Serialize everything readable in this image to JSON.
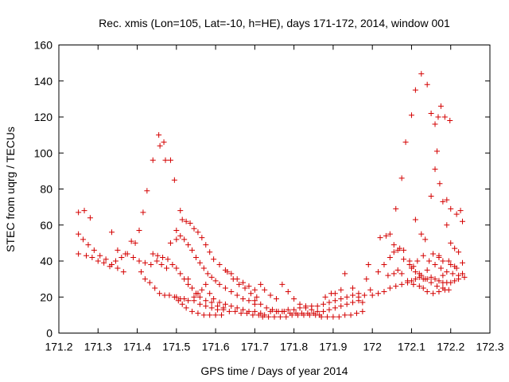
{
  "chart_data": {
    "type": "scatter",
    "title": "Rec. xmis (Lon=105, Lat=-10, h=HE), days 171-172, 2014, window 001",
    "xlabel": "GPS time / Days of year 2014",
    "ylabel": "STEC from uqrg / TECUs",
    "xlim": [
      171.2,
      172.3
    ],
    "ylim": [
      0,
      160
    ],
    "x_ticks": [
      "171.2",
      "171.3",
      "171.4",
      "171.5",
      "171.6",
      "171.7",
      "171.8",
      "171.9",
      "172",
      "172.1",
      "172.2",
      "172.3"
    ],
    "y_ticks": [
      "0",
      "20",
      "40",
      "60",
      "80",
      "100",
      "120",
      "140",
      "160"
    ],
    "grid": false,
    "marker": "+",
    "color": "#d40000",
    "points": [
      [
        171.25,
        67
      ],
      [
        171.265,
        68
      ],
      [
        171.28,
        64
      ],
      [
        171.25,
        55
      ],
      [
        171.262,
        52
      ],
      [
        171.275,
        49
      ],
      [
        171.29,
        46
      ],
      [
        171.305,
        43
      ],
      [
        171.32,
        41
      ],
      [
        171.335,
        38
      ],
      [
        171.35,
        36
      ],
      [
        171.365,
        34
      ],
      [
        171.25,
        44
      ],
      [
        171.27,
        43
      ],
      [
        171.285,
        42
      ],
      [
        171.3,
        40
      ],
      [
        171.315,
        39
      ],
      [
        171.33,
        37
      ],
      [
        171.345,
        40
      ],
      [
        171.36,
        42
      ],
      [
        171.375,
        44
      ],
      [
        171.39,
        42
      ],
      [
        171.405,
        40
      ],
      [
        171.42,
        39
      ],
      [
        171.435,
        38
      ],
      [
        171.335,
        56
      ],
      [
        171.35,
        46
      ],
      [
        171.37,
        44
      ],
      [
        171.385,
        51
      ],
      [
        171.395,
        50
      ],
      [
        171.405,
        57
      ],
      [
        171.415,
        67
      ],
      [
        171.425,
        79
      ],
      [
        171.44,
        96
      ],
      [
        171.455,
        110
      ],
      [
        171.458,
        104
      ],
      [
        171.468,
        106
      ],
      [
        171.472,
        96
      ],
      [
        171.485,
        96
      ],
      [
        171.495,
        85
      ],
      [
        171.41,
        34
      ],
      [
        171.42,
        30
      ],
      [
        171.432,
        28
      ],
      [
        171.445,
        25
      ],
      [
        171.457,
        22
      ],
      [
        171.47,
        21
      ],
      [
        171.482,
        21
      ],
      [
        171.495,
        20
      ],
      [
        171.505,
        18
      ],
      [
        171.515,
        16
      ],
      [
        171.525,
        14
      ],
      [
        171.54,
        12
      ],
      [
        171.555,
        11
      ],
      [
        171.57,
        10
      ],
      [
        171.585,
        10
      ],
      [
        171.6,
        10
      ],
      [
        171.615,
        10
      ],
      [
        171.44,
        44
      ],
      [
        171.452,
        43
      ],
      [
        171.465,
        42
      ],
      [
        171.478,
        41
      ],
      [
        171.49,
        38
      ],
      [
        171.5,
        36
      ],
      [
        171.51,
        33
      ],
      [
        171.52,
        30
      ],
      [
        171.53,
        27
      ],
      [
        171.54,
        25
      ],
      [
        171.55,
        22
      ],
      [
        171.56,
        20
      ],
      [
        171.575,
        18
      ],
      [
        171.59,
        17
      ],
      [
        171.605,
        15
      ],
      [
        171.62,
        14
      ],
      [
        171.45,
        40
      ],
      [
        171.462,
        38
      ],
      [
        171.475,
        36
      ],
      [
        171.485,
        50
      ],
      [
        171.5,
        57
      ],
      [
        171.51,
        68
      ],
      [
        171.515,
        63
      ],
      [
        171.525,
        62
      ],
      [
        171.535,
        61
      ],
      [
        171.545,
        58
      ],
      [
        171.555,
        56
      ],
      [
        171.565,
        53
      ],
      [
        171.575,
        49
      ],
      [
        171.585,
        45
      ],
      [
        171.595,
        41
      ],
      [
        171.61,
        38
      ],
      [
        171.625,
        35
      ],
      [
        171.64,
        33
      ],
      [
        171.655,
        30
      ],
      [
        171.67,
        28
      ],
      [
        171.685,
        26
      ],
      [
        171.7,
        24
      ],
      [
        171.5,
        52
      ],
      [
        171.51,
        54
      ],
      [
        171.52,
        52
      ],
      [
        171.53,
        49
      ],
      [
        171.54,
        46
      ],
      [
        171.55,
        42
      ],
      [
        171.56,
        39
      ],
      [
        171.57,
        36
      ],
      [
        171.58,
        33
      ],
      [
        171.59,
        31
      ],
      [
        171.6,
        29
      ],
      [
        171.61,
        27
      ],
      [
        171.625,
        25
      ],
      [
        171.64,
        23
      ],
      [
        171.655,
        21
      ],
      [
        171.67,
        19
      ],
      [
        171.685,
        18
      ],
      [
        171.7,
        16
      ],
      [
        171.5,
        20
      ],
      [
        171.51,
        19
      ],
      [
        171.52,
        19
      ],
      [
        171.53,
        18
      ],
      [
        171.545,
        20
      ],
      [
        171.555,
        22
      ],
      [
        171.565,
        24
      ],
      [
        171.575,
        27
      ],
      [
        171.585,
        22
      ],
      [
        171.595,
        19
      ],
      [
        171.61,
        17
      ],
      [
        171.625,
        16
      ],
      [
        171.64,
        15
      ],
      [
        171.655,
        14
      ],
      [
        171.67,
        13
      ],
      [
        171.685,
        12
      ],
      [
        171.7,
        12
      ],
      [
        171.715,
        11
      ],
      [
        171.53,
        30
      ],
      [
        171.545,
        18
      ],
      [
        171.56,
        16
      ],
      [
        171.575,
        15
      ],
      [
        171.59,
        14
      ],
      [
        171.605,
        13
      ],
      [
        171.62,
        13
      ],
      [
        171.635,
        12
      ],
      [
        171.65,
        12
      ],
      [
        171.665,
        11
      ],
      [
        171.68,
        11
      ],
      [
        171.695,
        10
      ],
      [
        171.71,
        10
      ],
      [
        171.725,
        10
      ],
      [
        171.63,
        34
      ],
      [
        171.645,
        30
      ],
      [
        171.66,
        27
      ],
      [
        171.675,
        25
      ],
      [
        171.69,
        22
      ],
      [
        171.705,
        20
      ],
      [
        171.715,
        27
      ],
      [
        171.725,
        24
      ],
      [
        171.74,
        21
      ],
      [
        171.755,
        19
      ],
      [
        171.77,
        27
      ],
      [
        171.785,
        23
      ],
      [
        171.7,
        18
      ],
      [
        171.715,
        16
      ],
      [
        171.73,
        14
      ],
      [
        171.745,
        13
      ],
      [
        171.76,
        12
      ],
      [
        171.775,
        12
      ],
      [
        171.79,
        11
      ],
      [
        171.805,
        11
      ],
      [
        171.82,
        11
      ],
      [
        171.835,
        11
      ],
      [
        171.85,
        11
      ],
      [
        171.865,
        10
      ],
      [
        171.72,
        9
      ],
      [
        171.735,
        9
      ],
      [
        171.75,
        9
      ],
      [
        171.765,
        9
      ],
      [
        171.78,
        9
      ],
      [
        171.795,
        10
      ],
      [
        171.81,
        10
      ],
      [
        171.825,
        10
      ],
      [
        171.84,
        10
      ],
      [
        171.855,
        10
      ],
      [
        171.87,
        9
      ],
      [
        171.885,
        9
      ],
      [
        171.9,
        9
      ],
      [
        171.915,
        9
      ],
      [
        171.93,
        10
      ],
      [
        171.945,
        10
      ],
      [
        171.96,
        11
      ],
      [
        171.975,
        12
      ],
      [
        171.74,
        12
      ],
      [
        171.755,
        12
      ],
      [
        171.77,
        12
      ],
      [
        171.785,
        13
      ],
      [
        171.8,
        13
      ],
      [
        171.815,
        14
      ],
      [
        171.83,
        15
      ],
      [
        171.845,
        15
      ],
      [
        171.86,
        15
      ],
      [
        171.875,
        16
      ],
      [
        171.89,
        17
      ],
      [
        171.905,
        18
      ],
      [
        171.92,
        19
      ],
      [
        171.935,
        20
      ],
      [
        171.95,
        21
      ],
      [
        171.965,
        22
      ],
      [
        171.8,
        19
      ],
      [
        171.815,
        16
      ],
      [
        171.83,
        14
      ],
      [
        171.845,
        13
      ],
      [
        171.86,
        12
      ],
      [
        171.875,
        12
      ],
      [
        171.89,
        13
      ],
      [
        171.905,
        14
      ],
      [
        171.92,
        15
      ],
      [
        171.935,
        16
      ],
      [
        171.95,
        17
      ],
      [
        171.965,
        18
      ],
      [
        171.98,
        21
      ],
      [
        171.995,
        24
      ],
      [
        171.88,
        20
      ],
      [
        171.895,
        22
      ],
      [
        171.905,
        22
      ],
      [
        171.92,
        24
      ],
      [
        171.93,
        33
      ],
      [
        171.95,
        25
      ],
      [
        171.965,
        20
      ],
      [
        171.975,
        17
      ],
      [
        171.985,
        30
      ],
      [
        171.99,
        38
      ],
      [
        172.0,
        21
      ],
      [
        172.015,
        22
      ],
      [
        172.03,
        23
      ],
      [
        172.045,
        25
      ],
      [
        172.06,
        26
      ],
      [
        172.075,
        27
      ],
      [
        172.09,
        28
      ],
      [
        172.1,
        29
      ],
      [
        172.11,
        30
      ],
      [
        172.12,
        31
      ],
      [
        172.13,
        30
      ],
      [
        172.14,
        30
      ],
      [
        172.15,
        31
      ],
      [
        172.16,
        30
      ],
      [
        172.17,
        29
      ],
      [
        172.18,
        28
      ],
      [
        172.19,
        28
      ],
      [
        172.2,
        28
      ],
      [
        172.21,
        29
      ],
      [
        172.22,
        30
      ],
      [
        172.235,
        31
      ],
      [
        172.015,
        34
      ],
      [
        172.03,
        38
      ],
      [
        172.045,
        42
      ],
      [
        172.055,
        45
      ],
      [
        172.07,
        47
      ],
      [
        172.08,
        46
      ],
      [
        172.095,
        40
      ],
      [
        172.105,
        37
      ],
      [
        172.115,
        40
      ],
      [
        172.13,
        43
      ],
      [
        172.145,
        40
      ],
      [
        172.16,
        38
      ],
      [
        172.175,
        36
      ],
      [
        172.19,
        34
      ],
      [
        172.205,
        33
      ],
      [
        172.22,
        32
      ],
      [
        172.02,
        53
      ],
      [
        172.035,
        54
      ],
      [
        172.045,
        55
      ],
      [
        172.055,
        49
      ],
      [
        172.065,
        46
      ],
      [
        172.08,
        41
      ],
      [
        172.095,
        38
      ],
      [
        172.1,
        36
      ],
      [
        172.11,
        34
      ],
      [
        172.125,
        32
      ],
      [
        172.135,
        30
      ],
      [
        172.15,
        28
      ],
      [
        172.165,
        26
      ],
      [
        172.18,
        25
      ],
      [
        172.195,
        24
      ],
      [
        172.04,
        32
      ],
      [
        172.055,
        33
      ],
      [
        172.065,
        35
      ],
      [
        172.075,
        33
      ],
      [
        172.09,
        29
      ],
      [
        172.105,
        27
      ],
      [
        172.12,
        26
      ],
      [
        172.13,
        25
      ],
      [
        172.14,
        23
      ],
      [
        172.155,
        22
      ],
      [
        172.17,
        23
      ],
      [
        172.185,
        24
      ],
      [
        172.06,
        69
      ],
      [
        172.075,
        86
      ],
      [
        172.085,
        106
      ],
      [
        172.1,
        121
      ],
      [
        172.11,
        135
      ],
      [
        172.125,
        144
      ],
      [
        172.14,
        138
      ],
      [
        172.15,
        122
      ],
      [
        172.16,
        116
      ],
      [
        172.168,
        120
      ],
      [
        172.175,
        126
      ],
      [
        172.185,
        120
      ],
      [
        172.198,
        118
      ],
      [
        172.11,
        63
      ],
      [
        172.125,
        55
      ],
      [
        172.135,
        52
      ],
      [
        172.15,
        76
      ],
      [
        172.16,
        91
      ],
      [
        172.165,
        101
      ],
      [
        172.172,
        83
      ],
      [
        172.18,
        73
      ],
      [
        172.19,
        74
      ],
      [
        172.2,
        69
      ],
      [
        172.215,
        66
      ],
      [
        172.225,
        68
      ],
      [
        172.23,
        62
      ],
      [
        172.19,
        60
      ],
      [
        172.2,
        50
      ],
      [
        172.21,
        47
      ],
      [
        172.22,
        45
      ],
      [
        172.23,
        39
      ],
      [
        172.215,
        36
      ],
      [
        172.23,
        33
      ],
      [
        172.2,
        38
      ],
      [
        172.21,
        37
      ],
      [
        172.12,
        33
      ],
      [
        172.14,
        35
      ],
      [
        172.155,
        44
      ],
      [
        172.17,
        42
      ],
      [
        172.18,
        40
      ],
      [
        172.195,
        40
      ],
      [
        172.18,
        32
      ],
      [
        172.17,
        43
      ]
    ]
  }
}
